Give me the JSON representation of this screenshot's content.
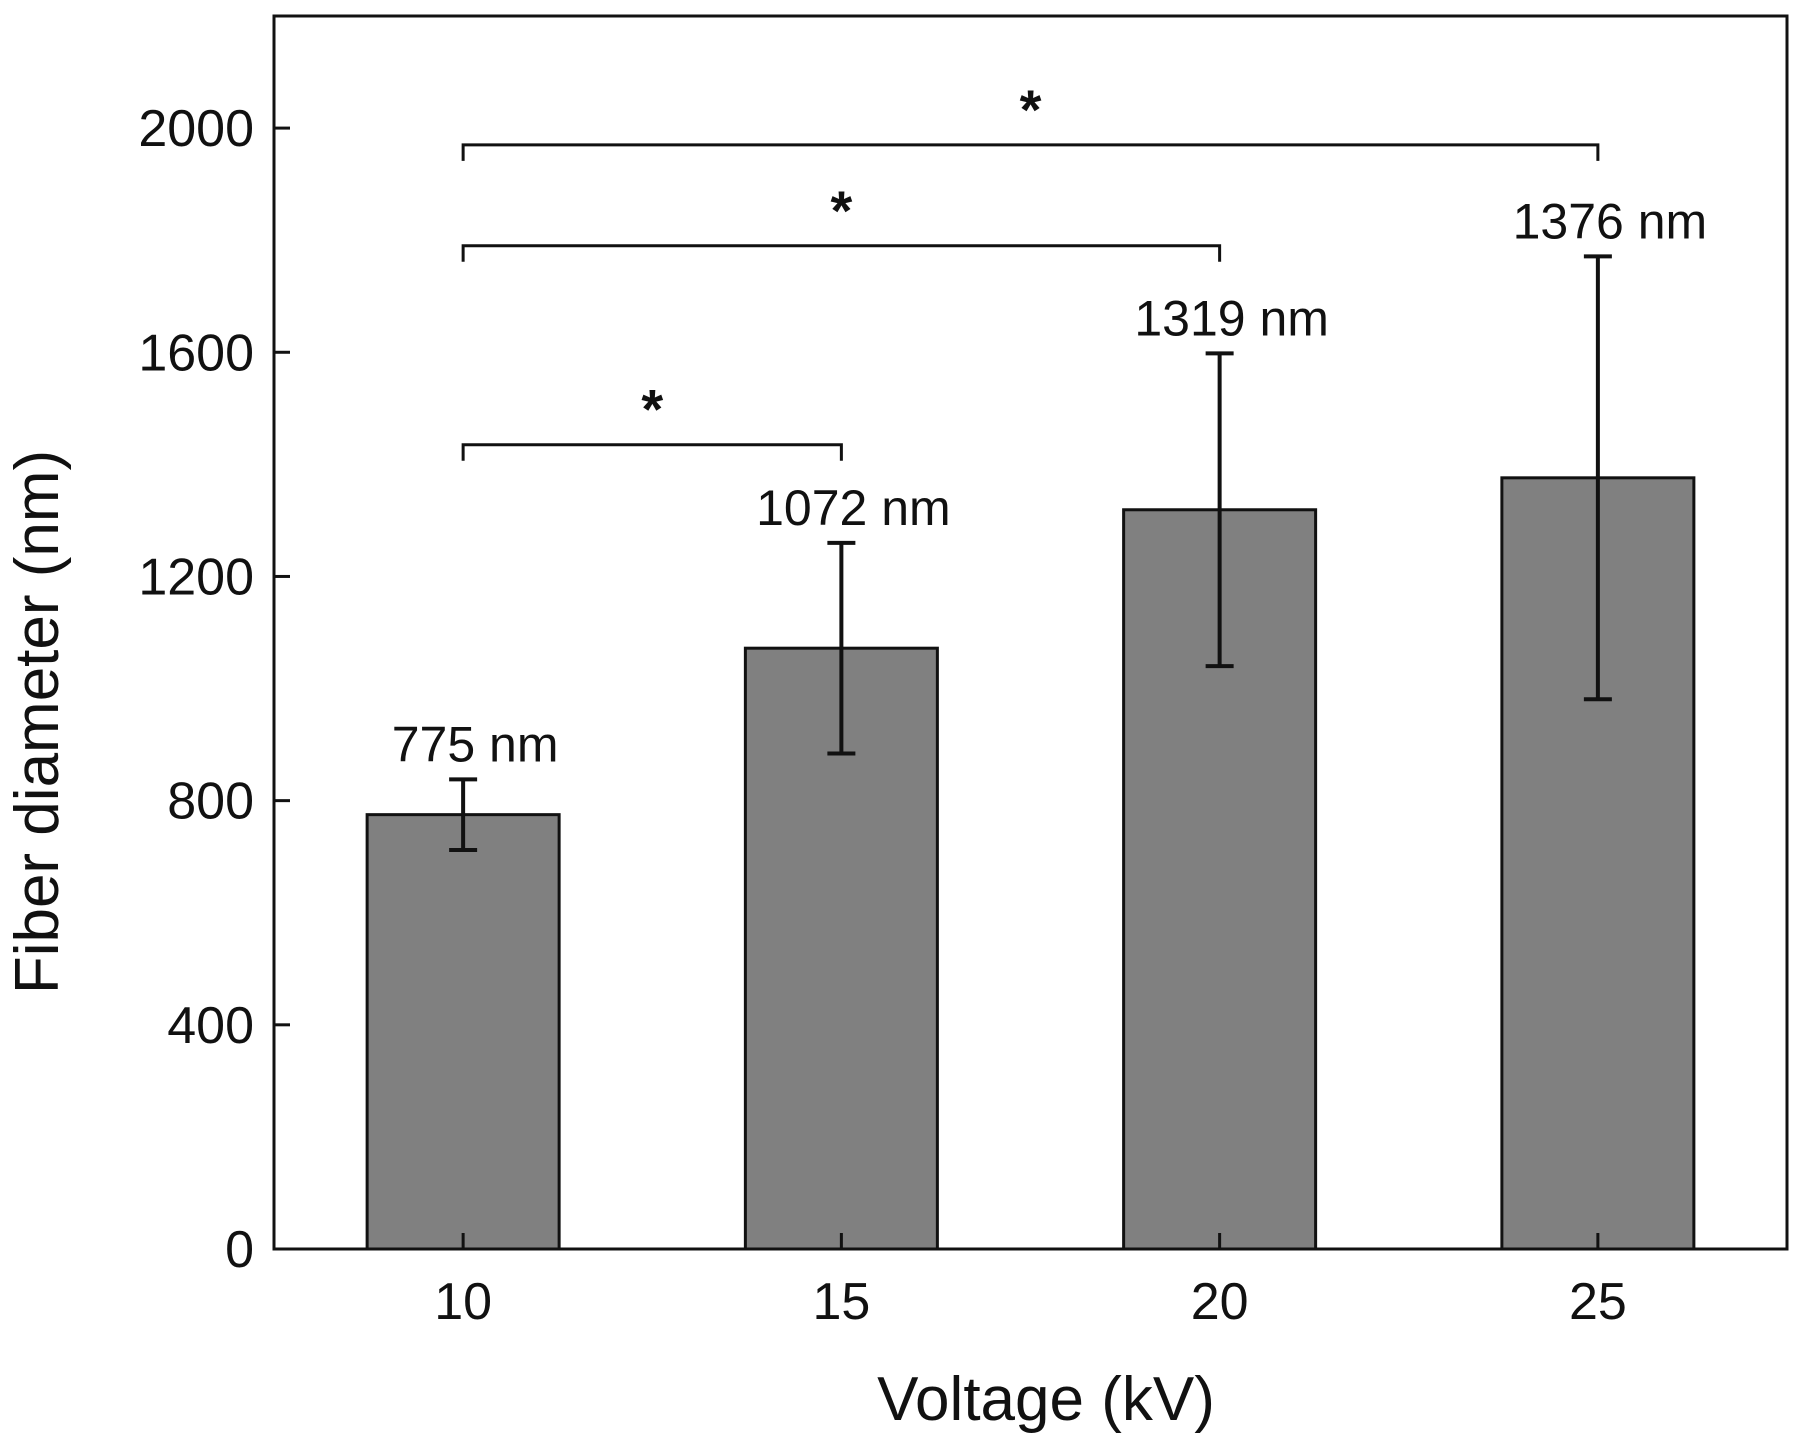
{
  "chart_data": {
    "type": "bar",
    "xlabel": "Voltage (kV)",
    "ylabel": "Fiber diameter (nm)",
    "categories": [
      "10",
      "15",
      "20",
      "25"
    ],
    "values": [
      775,
      1072,
      1319,
      1376
    ],
    "error": [
      63,
      188,
      279,
      395
    ],
    "data_labels": [
      "775 nm",
      "1072 nm",
      "1319 nm",
      "1376 nm"
    ],
    "ylim": [
      0,
      2200
    ],
    "yticks": [
      0,
      400,
      800,
      1200,
      1600,
      2000
    ],
    "ytick_labels": [
      "0",
      "400",
      "800",
      "1200",
      "1600",
      "2000"
    ],
    "bar_color": "#808080",
    "significance": [
      {
        "from": "10",
        "to": "15",
        "y": 1435,
        "label": "*"
      },
      {
        "from": "10",
        "to": "20",
        "y": 1790,
        "label": "*"
      },
      {
        "from": "10",
        "to": "25",
        "y": 1970,
        "label": "*"
      }
    ],
    "grid": false
  }
}
